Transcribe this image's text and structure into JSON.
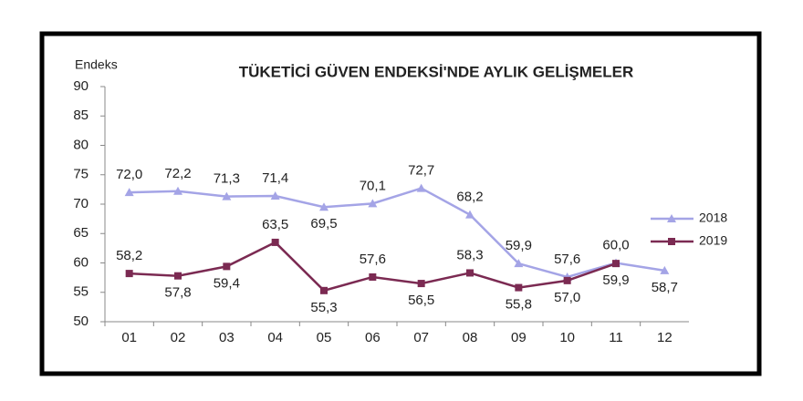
{
  "chart_data": {
    "type": "line",
    "title": "TÜKETİCİ GÜVEN ENDEKSİ'NDE AYLIK GELİŞMELER",
    "y_label": "Endeks",
    "categories": [
      "01",
      "02",
      "03",
      "04",
      "05",
      "06",
      "07",
      "08",
      "09",
      "10",
      "11",
      "12"
    ],
    "ylim": [
      50,
      90
    ],
    "yticks": [
      50,
      55,
      60,
      65,
      70,
      75,
      80,
      85,
      90
    ],
    "grid": false,
    "legend": "right",
    "series": [
      {
        "name": "2018",
        "color": "#a4a4e6",
        "marker": "triangle",
        "values": [
          72.0,
          72.2,
          71.3,
          71.4,
          69.5,
          70.1,
          72.7,
          68.2,
          59.9,
          57.6,
          60.0,
          58.7
        ],
        "value_labels": [
          "72,0",
          "72,2",
          "71,3",
          "71,4",
          "69,5",
          "70,1",
          "72,7",
          "68,2",
          "59,9",
          "57,6",
          "60,0",
          "58,7"
        ]
      },
      {
        "name": "2019",
        "color": "#7b2a52",
        "marker": "square",
        "values": [
          58.2,
          57.8,
          59.4,
          63.5,
          55.3,
          57.6,
          56.5,
          58.3,
          55.8,
          57.0,
          59.9,
          null
        ],
        "value_labels": [
          "58,2",
          "57,8",
          "59,4",
          "63,5",
          "55,3",
          "57,6",
          "56,5",
          "58,3",
          "55,8",
          "57,0",
          "59,9",
          null
        ]
      }
    ]
  }
}
